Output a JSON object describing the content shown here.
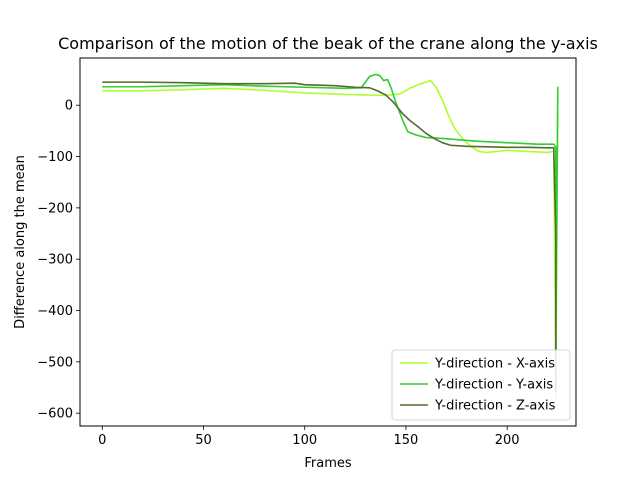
{
  "chart_data": {
    "type": "line",
    "title": "Comparison of the motion of the beak of the crane along the y-axis",
    "xlabel": "Frames",
    "ylabel": "Difference along the mean",
    "xlim": [
      -11,
      234
    ],
    "ylim": [
      -625,
      92
    ],
    "xticks": [
      0,
      50,
      100,
      150,
      200
    ],
    "yticks": [
      0,
      -100,
      -200,
      -300,
      -400,
      -500,
      -600
    ],
    "grid": false,
    "legend_position": "lower-right",
    "series": [
      {
        "name": "Y-direction - X-axis",
        "color": "#adff2f",
        "points": [
          [
            0,
            28
          ],
          [
            20,
            28
          ],
          [
            40,
            30
          ],
          [
            60,
            33
          ],
          [
            80,
            29
          ],
          [
            100,
            24
          ],
          [
            120,
            21
          ],
          [
            140,
            19
          ],
          [
            147,
            22
          ],
          [
            152,
            33
          ],
          [
            156,
            40
          ],
          [
            160,
            45
          ],
          [
            162,
            48
          ],
          [
            165,
            35
          ],
          [
            168,
            10
          ],
          [
            171,
            -20
          ],
          [
            174,
            -45
          ],
          [
            178,
            -65
          ],
          [
            182,
            -80
          ],
          [
            186,
            -90
          ],
          [
            190,
            -92
          ],
          [
            195,
            -90
          ],
          [
            200,
            -88
          ],
          [
            210,
            -90
          ],
          [
            220,
            -92
          ],
          [
            223,
            -90
          ],
          [
            224,
            -500
          ],
          [
            224,
            -575
          ],
          [
            225,
            30
          ],
          [
            225,
            36
          ]
        ]
      },
      {
        "name": "Y-direction - Y-axis",
        "color": "#32cd32",
        "points": [
          [
            0,
            36
          ],
          [
            20,
            36
          ],
          [
            40,
            38
          ],
          [
            60,
            40
          ],
          [
            80,
            37
          ],
          [
            100,
            35
          ],
          [
            120,
            33
          ],
          [
            128,
            34
          ],
          [
            132,
            56
          ],
          [
            135,
            60
          ],
          [
            137,
            58
          ],
          [
            139,
            48
          ],
          [
            141,
            50
          ],
          [
            143,
            30
          ],
          [
            145,
            5
          ],
          [
            147,
            -15
          ],
          [
            149,
            -35
          ],
          [
            151,
            -52
          ],
          [
            155,
            -58
          ],
          [
            160,
            -63
          ],
          [
            165,
            -64
          ],
          [
            175,
            -67
          ],
          [
            185,
            -70
          ],
          [
            195,
            -72
          ],
          [
            205,
            -74
          ],
          [
            215,
            -76
          ],
          [
            223,
            -76
          ],
          [
            224,
            -82
          ],
          [
            224,
            -500
          ],
          [
            225,
            30
          ],
          [
            225,
            36
          ]
        ]
      },
      {
        "name": "Y-direction - Z-axis",
        "color": "#556b2f",
        "points": [
          [
            0,
            45
          ],
          [
            20,
            45
          ],
          [
            40,
            44
          ],
          [
            60,
            42
          ],
          [
            80,
            42
          ],
          [
            95,
            43
          ],
          [
            100,
            40
          ],
          [
            115,
            38
          ],
          [
            125,
            35
          ],
          [
            132,
            34
          ],
          [
            136,
            28
          ],
          [
            140,
            20
          ],
          [
            144,
            5
          ],
          [
            148,
            -15
          ],
          [
            152,
            -30
          ],
          [
            156,
            -42
          ],
          [
            160,
            -55
          ],
          [
            164,
            -65
          ],
          [
            168,
            -73
          ],
          [
            172,
            -78
          ],
          [
            180,
            -80
          ],
          [
            190,
            -81
          ],
          [
            200,
            -82
          ],
          [
            210,
            -82
          ],
          [
            220,
            -83
          ],
          [
            223,
            -83
          ],
          [
            224,
            -250
          ],
          [
            224,
            -500
          ],
          [
            224,
            -560
          ]
        ]
      }
    ]
  }
}
